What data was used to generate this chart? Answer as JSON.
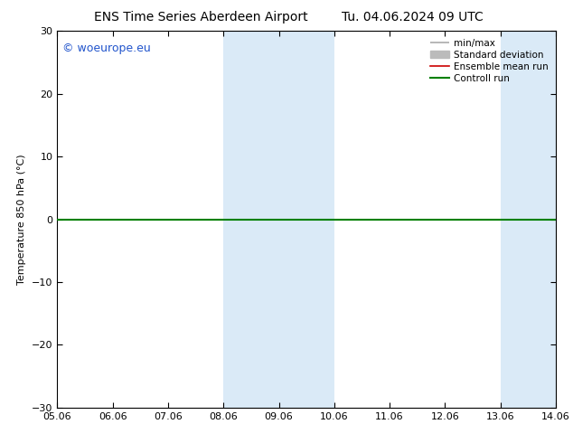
{
  "title_left": "ENS Time Series Aberdeen Airport",
  "title_right": "Tu. 04.06.2024 09 UTC",
  "ylabel": "Temperature 850 hPa (°C)",
  "ylim": [
    -30,
    30
  ],
  "yticks": [
    -30,
    -20,
    -10,
    0,
    10,
    20,
    30
  ],
  "xlim": [
    0,
    9
  ],
  "xtick_labels": [
    "05.06",
    "06.06",
    "07.06",
    "08.06",
    "09.06",
    "10.06",
    "11.06",
    "12.06",
    "13.06",
    "14.06"
  ],
  "xtick_positions": [
    0,
    1,
    2,
    3,
    4,
    5,
    6,
    7,
    8,
    9
  ],
  "watermark": "© woeurope.eu",
  "shaded_bands": [
    {
      "xmin": 3,
      "xmax": 5,
      "color": "#daeaf7"
    },
    {
      "xmin": 8,
      "xmax": 9,
      "color": "#daeaf7"
    }
  ],
  "zero_line_y": 0,
  "legend_entries": [
    {
      "label": "min/max",
      "color": "#aaaaaa",
      "lw": 1.2,
      "ls": "-"
    },
    {
      "label": "Standard deviation",
      "color": "#bbbbbb",
      "lw": 5,
      "ls": "-"
    },
    {
      "label": "Ensemble mean run",
      "color": "#cc0000",
      "lw": 1.2,
      "ls": "-"
    },
    {
      "label": "Controll run",
      "color": "#008000",
      "lw": 1.5,
      "ls": "-"
    }
  ],
  "control_run_y": 0,
  "bg_color": "#ffffff",
  "plot_bg_color": "#ffffff",
  "title_fontsize": 10,
  "tick_fontsize": 8,
  "ylabel_fontsize": 8,
  "legend_fontsize": 7.5,
  "watermark_color": "#2255cc",
  "watermark_fontsize": 9
}
